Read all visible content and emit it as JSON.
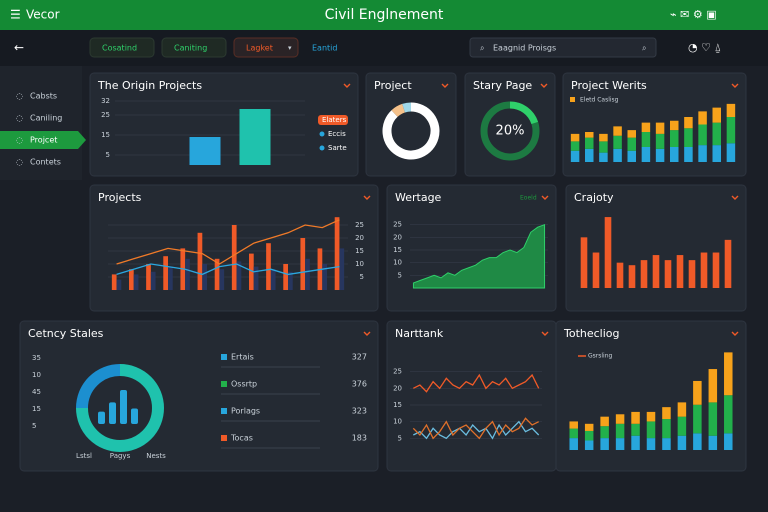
{
  "header": {
    "menu": "Vecor",
    "title": "Civil Englnement"
  },
  "toolbar": {
    "tabs": [
      "Cosatind",
      "Caniting",
      "Lagket",
      "Eantid"
    ],
    "search": "Eaagnid Proisgs"
  },
  "sidebar": {
    "items": [
      "Cabsts",
      "Caniling",
      "Projcet",
      "Contets"
    ],
    "active": 2
  },
  "panels": [
    {
      "title": "The Origin Projects",
      "chart": {
        "type": "bar",
        "values": [
          14,
          28
        ],
        "colors": [
          "#27a6dc",
          "#1fc2ad"
        ],
        "ylim": [
          0,
          35
        ],
        "yticks": [
          5,
          15,
          25,
          32
        ],
        "grid": true,
        "legend": [
          "Elaters",
          "Eccis",
          "Sarte"
        ],
        "legend_colors": [
          "#f05a28",
          "#27a6dc",
          "#27a6dc"
        ]
      }
    },
    {
      "title": "Project",
      "chart": {
        "type": "donut",
        "values": [
          88,
          7,
          5
        ],
        "colors": [
          "#ffffff",
          "#f5c18a",
          "#9fd7e8"
        ]
      }
    },
    {
      "title": "Stary Page",
      "chart": {
        "type": "ring",
        "value": 20,
        "value_label": "20%",
        "color": "#2fd06a",
        "track": "#1d7a42"
      }
    },
    {
      "title": "Project Werits",
      "chart": {
        "type": "stacked_bar",
        "legend": "Eletd Caslisg",
        "ylim": [
          0,
          32
        ],
        "series": [
          {
            "color": "#27a6dc",
            "values": [
              6,
              7,
              5,
              7,
              6,
              8,
              7,
              8,
              8,
              9,
              9,
              10
            ]
          },
          {
            "color": "#22b04b",
            "values": [
              5,
              6,
              6,
              7,
              7,
              8,
              8,
              9,
              10,
              11,
              12,
              14
            ]
          },
          {
            "color": "#f7a21b",
            "values": [
              4,
              3,
              4,
              5,
              4,
              5,
              6,
              5,
              6,
              7,
              8,
              7
            ]
          }
        ]
      }
    },
    {
      "title": "Projects",
      "chart": {
        "type": "combo",
        "ylim": [
          0,
          30
        ],
        "yticks": [
          5,
          10,
          15,
          20,
          25
        ],
        "grid": true,
        "series": [
          {
            "kind": "bar",
            "color": "#f05a28",
            "values": [
              6,
              8,
              10,
              13,
              16,
              22,
              12,
              25,
              14,
              18,
              10,
              20,
              16,
              28
            ]
          },
          {
            "kind": "bar",
            "color": "#27365f",
            "values": [
              4,
              6,
              7,
              9,
              12,
              10,
              8,
              11,
              9,
              8,
              7,
              12,
              10,
              16
            ]
          },
          {
            "kind": "line",
            "color": "#f07a28",
            "values": [
              10,
              12,
              14,
              16,
              15,
              14,
              10,
              14,
              18,
              20,
              22,
              25,
              24,
              27
            ]
          },
          {
            "kind": "line",
            "color": "#2aa7e0",
            "values": [
              6,
              8,
              10,
              9,
              8,
              6,
              9,
              10,
              7,
              8,
              6,
              7,
              8,
              9
            ]
          }
        ]
      }
    },
    {
      "title": "Wertage",
      "chart": {
        "type": "area",
        "legend": "Eoeld",
        "color": "#1f8a45",
        "ylim": [
          0,
          30
        ],
        "yticks": [
          5,
          10,
          15,
          20,
          25
        ],
        "grid": true,
        "values": [
          2,
          3,
          4,
          5,
          4,
          6,
          5,
          7,
          8,
          9,
          11,
          12,
          12,
          14,
          15,
          14,
          16,
          22,
          24,
          25
        ]
      }
    },
    {
      "title": "Crajoty",
      "chart": {
        "type": "bar",
        "color": "#f05a28",
        "ylim": [
          0,
          30
        ],
        "values": [
          20,
          14,
          28,
          10,
          9,
          11,
          13,
          11,
          13,
          11,
          14,
          14,
          19
        ]
      }
    },
    {
      "title": "Cetncy Stales",
      "chart": {
        "type": "donut_bars",
        "values": [
          75,
          25
        ],
        "colors": [
          "#1fc2ad",
          "#1c8fd0"
        ],
        "bars": [
          8,
          14,
          22,
          10
        ],
        "bar_color": "#27a6dc",
        "axis_labels": [
          35,
          10,
          45,
          15,
          5
        ],
        "legend": [
          "Lstsl",
          "Pagys",
          "Nests"
        ],
        "rows": [
          {
            "name": "Ertais",
            "value": 327,
            "color": "#27a6dc"
          },
          {
            "name": "Ossrtp",
            "value": 376,
            "color": "#22b04b"
          },
          {
            "name": "Porlags",
            "value": 323,
            "color": "#27a6dc"
          },
          {
            "name": "Tocas",
            "value": 183,
            "color": "#f05a28"
          }
        ]
      }
    },
    {
      "title": "Narttank",
      "chart": {
        "type": "line",
        "ylim": [
          0,
          30
        ],
        "yticks": [
          5,
          10,
          15,
          20,
          25
        ],
        "grid": true,
        "series": [
          {
            "color": "#f05a28",
            "values": [
              20,
              21,
              19,
              22,
              20,
              23,
              21,
              20,
              22,
              21,
              24,
              20,
              22,
              21,
              23,
              20,
              21,
              22,
              24,
              20
            ]
          },
          {
            "color": "#6bbde0",
            "values": [
              6,
              7,
              5,
              8,
              6,
              5,
              7,
              8,
              6,
              9,
              7,
              8,
              5,
              9,
              6,
              8,
              10,
              7,
              8,
              6
            ]
          },
          {
            "color": "#e0702a",
            "values": [
              8,
              6,
              9,
              5,
              7,
              10,
              6,
              8,
              9,
              7,
              5,
              8,
              10,
              6,
              9,
              7,
              8,
              11,
              9,
              10
            ]
          }
        ]
      }
    },
    {
      "title": "Tothecliog",
      "chart": {
        "type": "stacked_bar",
        "legend": "Gsrsling",
        "legend_line": true,
        "ylim": [
          0,
          42
        ],
        "series": [
          {
            "color": "#27a6dc",
            "values": [
              5,
              4,
              5,
              5,
              6,
              5,
              5,
              6,
              7,
              6,
              7
            ]
          },
          {
            "color": "#22b04b",
            "values": [
              4,
              4,
              5,
              6,
              5,
              7,
              8,
              8,
              12,
              14,
              16
            ]
          },
          {
            "color": "#f7a21b",
            "values": [
              3,
              3,
              4,
              4,
              5,
              4,
              5,
              6,
              10,
              14,
              18
            ]
          }
        ]
      }
    }
  ]
}
